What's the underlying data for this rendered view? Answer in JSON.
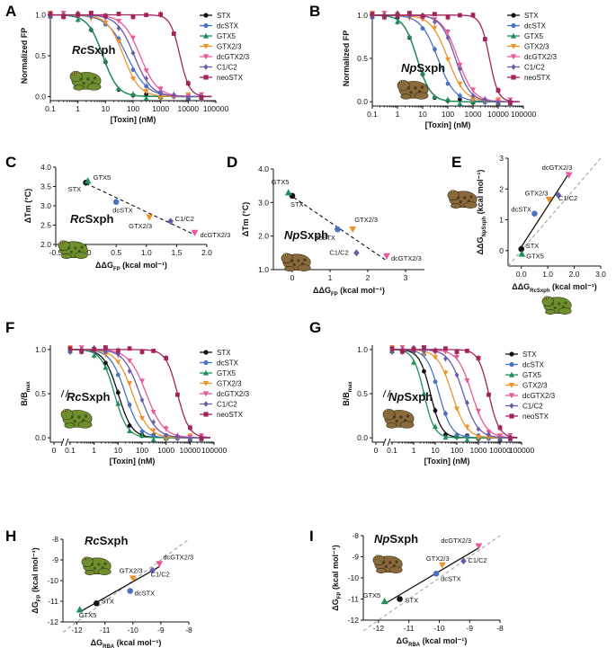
{
  "series_meta": [
    {
      "key": "STX",
      "color": "#111111",
      "marker": "circle"
    },
    {
      "key": "dcSTX",
      "color": "#4a72c4",
      "marker": "circle"
    },
    {
      "key": "GTX5",
      "color": "#1e8f5a",
      "marker": "triangle-up"
    },
    {
      "key": "GTX2/3",
      "color": "#f0922a",
      "marker": "triangle-down"
    },
    {
      "key": "dcGTX2/3",
      "color": "#e8589a",
      "marker": "triangle-down"
    },
    {
      "key": "C1/C2",
      "color": "#6a5aa8",
      "marker": "diamond"
    },
    {
      "key": "neoSTX",
      "color": "#a6225a",
      "marker": "square"
    }
  ],
  "panels": {
    "A": {
      "label": "A",
      "title_italic": "Rc",
      "title_rest": "Sxph",
      "ylabel": "Normalized FP",
      "xlabel": "[Toxin] (nM)",
      "xticks": [
        "0.1",
        "1",
        "10",
        "100",
        "1000",
        "10000",
        "100000"
      ],
      "yticks": [
        "0.0",
        "0.5",
        "1.0"
      ]
    },
    "B": {
      "label": "B",
      "title_italic": "Np",
      "title_rest": "Sxph",
      "ylabel": "Normalized FP",
      "xlabel": "[Toxin] (nM)",
      "xticks": [
        "0.1",
        "1",
        "10",
        "100",
        "1000",
        "10000",
        "100000"
      ],
      "yticks": [
        "0.0",
        "0.5",
        "1.0"
      ]
    },
    "C": {
      "label": "C",
      "title_italic": "Rc",
      "title_rest": "Sxph",
      "ylabel": "ΔTm (°C)",
      "xlabel_main": "ΔΔG",
      "xlabel_sub": "FP",
      "xlabel_unit": " (kcal mol⁻¹)",
      "xticks": [
        "-0.5",
        "0.0",
        "0.5",
        "1.0",
        "1.5",
        "2.0"
      ],
      "yticks": [
        "2.0",
        "2.5",
        "3.0",
        "3.5",
        "4.0"
      ]
    },
    "D": {
      "label": "D",
      "title_italic": "Np",
      "title_rest": "Sxph",
      "ylabel": "ΔTm (°C)",
      "xlabel_main": "ΔΔG",
      "xlabel_sub": "FP",
      "xlabel_unit": " (kcal mol⁻¹)",
      "xticks": [
        "0",
        "1",
        "2",
        "3"
      ],
      "yticks": [
        "1.0",
        "2.0",
        "3.0",
        "4.0"
      ]
    },
    "E": {
      "label": "E",
      "ylabel_main": "ΔΔG",
      "ylabel_sub": "NpSxph",
      "ylabel_unit": " (kcal mol⁻¹)",
      "xlabel_main": "ΔΔG",
      "xlabel_sub": "RcSxph",
      "xlabel_unit": " (kcal mol⁻¹)",
      "xticks": [
        "0.0",
        "1.0",
        "2.0",
        "3.0"
      ],
      "yticks": [
        "0",
        "1",
        "2",
        "3"
      ]
    },
    "F": {
      "label": "F",
      "title_italic": "Rc",
      "title_rest": "Sxph",
      "ylabel": "B/Bmax",
      "xlabel": "[Toxin] (nM)",
      "xticks": [
        "0",
        "0.1",
        "1",
        "10",
        "100",
        "1000",
        "10000",
        "100000"
      ],
      "yticks": [
        "0.0",
        "0.5",
        "1.0"
      ]
    },
    "G": {
      "label": "G",
      "title_italic": "Np",
      "title_rest": "Sxph",
      "ylabel": "B/Bmax",
      "xlabel": "[Toxin] (nM)",
      "xticks": [
        "0",
        "0.1",
        "1",
        "10",
        "100",
        "1000",
        "10000",
        "100000"
      ],
      "yticks": [
        "0.0",
        "0.5",
        "1.0"
      ]
    },
    "H": {
      "label": "H",
      "title_italic": "Rc",
      "title_rest": "Sxph",
      "ylabel_main": "ΔG",
      "ylabel_sub": "FP",
      "ylabel_unit": " (kcal mol⁻¹)",
      "xlabel_main": "ΔG",
      "xlabel_sub": "RBA",
      "xlabel_unit": " (kcal mol⁻¹)",
      "xticks": [
        "-12",
        "-11",
        "-10",
        "-9",
        "-8"
      ],
      "yticks": [
        "-8",
        "-9",
        "-10",
        "-11",
        "-12"
      ]
    },
    "I": {
      "label": "I",
      "title_italic": "Np",
      "title_rest": "Sxph",
      "ylabel_main": "ΔG",
      "ylabel_sub": "FP",
      "ylabel_unit": " (kcal mol⁻¹)",
      "xlabel_main": "ΔG",
      "xlabel_sub": "RBA",
      "xlabel_unit": " (kcal mol⁻¹)",
      "xticks": [
        "-12",
        "-11",
        "-10",
        "-9",
        "-8"
      ],
      "yticks": [
        "-8",
        "-9",
        "-10",
        "-11",
        "-12"
      ]
    }
  },
  "chart_data": [
    {
      "panel": "A",
      "type": "line",
      "title": "RcSxph",
      "xlabel": "[Toxin] (nM)",
      "ylabel": "Normalized FP",
      "xscale": "log",
      "xlim": [
        0.1,
        100000
      ],
      "ylim": [
        -0.05,
        1.05
      ],
      "series": [
        {
          "name": "STX",
          "ec50": 8,
          "hill": 1.6
        },
        {
          "name": "dcSTX",
          "ec50": 60,
          "hill": 1.2
        },
        {
          "name": "GTX5",
          "ec50": 8,
          "hill": 1.6
        },
        {
          "name": "GTX2/3",
          "ec50": 45,
          "hill": 1.5
        },
        {
          "name": "dcGTX2/3",
          "ec50": 180,
          "hill": 1.4
        },
        {
          "name": "C1/C2",
          "ec50": 110,
          "hill": 1.4
        },
        {
          "name": "neoSTX",
          "ec50": 5000,
          "hill": 2.5
        }
      ]
    },
    {
      "panel": "B",
      "type": "line",
      "title": "NpSxph",
      "xlabel": "[Toxin] (nM)",
      "ylabel": "Normalized FP",
      "xscale": "log",
      "xlim": [
        0.1,
        100000
      ],
      "ylim": [
        -0.05,
        1.05
      ],
      "series": [
        {
          "name": "STX",
          "ec50": 6,
          "hill": 1.6
        },
        {
          "name": "dcSTX",
          "ec50": 40,
          "hill": 1.3
        },
        {
          "name": "GTX5",
          "ec50": 6,
          "hill": 1.6
        },
        {
          "name": "GTX2/3",
          "ec50": 100,
          "hill": 1.3
        },
        {
          "name": "dcGTX2/3",
          "ec50": 250,
          "hill": 1.4
        },
        {
          "name": "C1/C2",
          "ec50": 200,
          "hill": 1.5
        },
        {
          "name": "neoSTX",
          "ec50": 4500,
          "hill": 2.5
        }
      ]
    },
    {
      "panel": "C",
      "type": "scatter",
      "title": "RcSxph",
      "xlim": [
        -0.5,
        2.0
      ],
      "ylim": [
        2.0,
        4.0
      ],
      "points": [
        {
          "name": "STX",
          "x": 0.0,
          "y": 3.6
        },
        {
          "name": "GTX5",
          "x": 0.03,
          "y": 3.65
        },
        {
          "name": "dcSTX",
          "x": 0.5,
          "y": 3.1
        },
        {
          "name": "GTX2/3",
          "x": 1.05,
          "y": 2.7
        },
        {
          "name": "C1/C2",
          "x": 1.4,
          "y": 2.6
        },
        {
          "name": "dcGTX2/3",
          "x": 1.8,
          "y": 2.3
        }
      ]
    },
    {
      "panel": "D",
      "type": "scatter",
      "title": "NpSxph",
      "xlim": [
        -0.5,
        3.5
      ],
      "ylim": [
        1.0,
        4.0
      ],
      "points": [
        {
          "name": "STX",
          "x": 0.0,
          "y": 3.2
        },
        {
          "name": "GTX5",
          "x": -0.1,
          "y": 3.3
        },
        {
          "name": "dcSTX",
          "x": 1.2,
          "y": 2.2
        },
        {
          "name": "GTX2/3",
          "x": 1.6,
          "y": 2.2
        },
        {
          "name": "C1/C2",
          "x": 1.7,
          "y": 1.5
        },
        {
          "name": "dcGTX2/3",
          "x": 2.5,
          "y": 1.4
        }
      ]
    },
    {
      "panel": "E",
      "type": "scatter",
      "xlim": [
        -0.5,
        3.0
      ],
      "ylim": [
        -0.5,
        3.0
      ],
      "points": [
        {
          "name": "STX",
          "x": 0.0,
          "y": 0.05
        },
        {
          "name": "GTX5",
          "x": 0.02,
          "y": -0.1
        },
        {
          "name": "dcSTX",
          "x": 0.5,
          "y": 1.2
        },
        {
          "name": "GTX2/3",
          "x": 1.05,
          "y": 1.65
        },
        {
          "name": "C1/C2",
          "x": 1.4,
          "y": 1.8
        },
        {
          "name": "dcGTX2/3",
          "x": 1.8,
          "y": 2.45
        }
      ]
    },
    {
      "panel": "F",
      "type": "line",
      "title": "RcSxph",
      "xlabel": "[Toxin] (nM)",
      "ylabel": "B/Bmax",
      "xscale": "log",
      "xlim": [
        0.1,
        100000
      ],
      "ylim": [
        -0.05,
        1.05
      ],
      "series": [
        {
          "name": "STX",
          "ec50": 10,
          "hill": 1.5
        },
        {
          "name": "dcSTX",
          "ec50": 20,
          "hill": 1.4
        },
        {
          "name": "GTX5",
          "ec50": 7,
          "hill": 1.6
        },
        {
          "name": "GTX2/3",
          "ec50": 40,
          "hill": 1.3
        },
        {
          "name": "dcGTX2/3",
          "ec50": 150,
          "hill": 1.2
        },
        {
          "name": "C1/C2",
          "ec50": 80,
          "hill": 1.3
        },
        {
          "name": "neoSTX",
          "ec50": 3000,
          "hill": 1.8
        }
      ]
    },
    {
      "panel": "G",
      "type": "line",
      "title": "NpSxph",
      "xlabel": "[Toxin] (nM)",
      "ylabel": "B/Bmax",
      "xscale": "log",
      "xlim": [
        0.1,
        100000
      ],
      "ylim": [
        -0.05,
        1.05
      ],
      "series": [
        {
          "name": "STX",
          "ec50": 6,
          "hill": 1.7
        },
        {
          "name": "dcSTX",
          "ec50": 15,
          "hill": 1.5
        },
        {
          "name": "GTX5",
          "ec50": 3,
          "hill": 1.8
        },
        {
          "name": "GTX2/3",
          "ec50": 60,
          "hill": 1.3
        },
        {
          "name": "dcGTX2/3",
          "ec50": 500,
          "hill": 1.3
        },
        {
          "name": "C1/C2",
          "ec50": 200,
          "hill": 1.3
        },
        {
          "name": "neoSTX",
          "ec50": 3000,
          "hill": 1.8
        }
      ]
    },
    {
      "panel": "H",
      "type": "scatter",
      "title": "RcSxph",
      "xlim": [
        -12.5,
        -8
      ],
      "ylim": [
        -12,
        -8
      ],
      "points": [
        {
          "name": "STX",
          "x": -11.3,
          "y": -11.1
        },
        {
          "name": "GTX5",
          "x": -11.9,
          "y": -11.4
        },
        {
          "name": "dcSTX",
          "x": -10.1,
          "y": -10.5
        },
        {
          "name": "GTX2/3",
          "x": -10.0,
          "y": -9.9
        },
        {
          "name": "C1/C2",
          "x": -9.3,
          "y": -9.5
        },
        {
          "name": "dcGTX2/3",
          "x": -9.05,
          "y": -9.2
        }
      ]
    },
    {
      "panel": "I",
      "type": "scatter",
      "title": "NpSxph",
      "xlim": [
        -12.5,
        -8
      ],
      "ylim": [
        -12,
        -8
      ],
      "points": [
        {
          "name": "STX",
          "x": -11.3,
          "y": -11.0
        },
        {
          "name": "GTX5",
          "x": -11.8,
          "y": -11.1
        },
        {
          "name": "dcSTX",
          "x": -10.1,
          "y": -9.8
        },
        {
          "name": "GTX2/3",
          "x": -9.9,
          "y": -9.4
        },
        {
          "name": "C1/C2",
          "x": -9.2,
          "y": -9.2
        },
        {
          "name": "dcGTX2/3",
          "x": -8.7,
          "y": -8.5
        }
      ]
    }
  ]
}
